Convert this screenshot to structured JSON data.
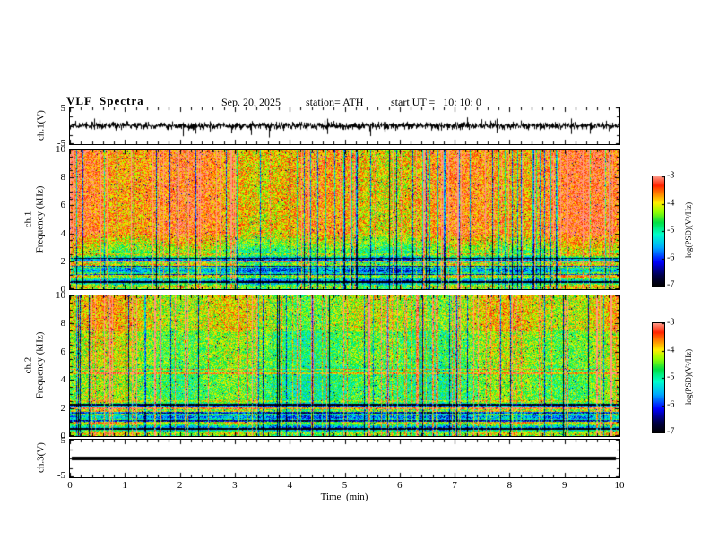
{
  "header": {
    "title": "VLF  Spectra",
    "date": "Sep. 20, 2025",
    "station": "station= ATH",
    "start_ut": "start UT =   10: 10: 0"
  },
  "xaxis": {
    "label": "Time  (min)",
    "min": 0,
    "max": 10,
    "tick_labels": [
      "0",
      "1",
      "2",
      "3",
      "4",
      "5",
      "6",
      "7",
      "8",
      "9",
      "10"
    ]
  },
  "colorbar": {
    "label": "log(PSD)(V²/Hz)",
    "max": -3,
    "min": -7,
    "tick_labels": [
      "-3",
      "-4",
      "-5",
      "-6",
      "-7"
    ]
  },
  "panels": {
    "ch1_wave": {
      "ylabel": "ch.1(V)",
      "ylim": [
        -5,
        5
      ],
      "ytick_labels": [
        "5",
        "-5"
      ]
    },
    "ch1_spec": {
      "ylabel_line1": "ch.1",
      "ylabel_line2": "Frequency (kHz)",
      "ylim": [
        0,
        10
      ],
      "ytick_labels": [
        "10",
        "8",
        "6",
        "4",
        "2",
        "0"
      ]
    },
    "ch2_spec": {
      "ylabel_line1": "ch.2",
      "ylabel_line2": "Frequency (kHz)",
      "ylim": [
        0,
        10
      ],
      "ytick_labels": [
        "10",
        "8",
        "6",
        "4",
        "2",
        "0"
      ]
    },
    "ch3_wave": {
      "ylabel": "ch.3(V)",
      "ylim": [
        -5,
        5
      ],
      "ytick_labels": [
        "5",
        "-5"
      ]
    }
  },
  "chart_data": [
    {
      "id": "ch1-waveform",
      "type": "line",
      "ylabel": "ch.1(V)",
      "xlim": [
        0,
        10
      ],
      "ylim": [
        -5,
        5
      ],
      "yticks": [
        5,
        -5
      ],
      "summary": "zero-mean broadband noise trace filling roughly ±1.5 V with frequent transient spikes reaching about ±4.5 V across the full 10 minutes"
    },
    {
      "id": "ch1-spectrogram",
      "type": "heatmap",
      "ylabel": "ch.1 Frequency (kHz)",
      "xlim": [
        0,
        10
      ],
      "ylim": [
        0,
        10
      ],
      "yticks": [
        10,
        8,
        6,
        4,
        2,
        0
      ],
      "zlabel": "log(PSD)(V²/Hz)",
      "zlim": [
        -7,
        -3
      ],
      "zticks": [
        -3,
        -4,
        -5,
        -6,
        -7
      ],
      "summary": "high power (red, ≈ -3…-4) above ~4 kHz with dense vertical sferic streaks and scattered dark dropout columns; yellow-green mid band 2–4 kHz; strong horizontal banding (green/cyan/yellow with dark rows and a red line near 2 kHz) below ~2.5 kHz"
    },
    {
      "id": "ch2-spectrogram",
      "type": "heatmap",
      "ylabel": "ch.2 Frequency (kHz)",
      "xlim": [
        0,
        10
      ],
      "ylim": [
        0,
        10
      ],
      "yticks": [
        10,
        8,
        6,
        4,
        2,
        0
      ],
      "zlabel": "log(PSD)(V²/Hz)",
      "zlim": [
        -7,
        -3
      ],
      "zticks": [
        -3,
        -4,
        -5,
        -6,
        -7
      ],
      "summary": "green background (≈ -5) with many red vertical sferic streaks over the whole band; horizontal interference lines near 4.5–4.8 kHz and 2 kHz; banded structure with dark rows below ~2.5 kHz"
    },
    {
      "id": "ch3-waveform",
      "type": "line",
      "ylabel": "ch.3(V)",
      "xlim": [
        0,
        10
      ],
      "ylim": [
        -5,
        5
      ],
      "yticks": [
        5,
        -5
      ],
      "summary": "constant flat line at 0 V (thick black trace, no signal)"
    }
  ],
  "render": {
    "colormap": [
      {
        "t": 0.0,
        "color": "#000000"
      },
      {
        "t": 0.1,
        "color": "#00004d"
      },
      {
        "t": 0.22,
        "color": "#0000ff"
      },
      {
        "t": 0.35,
        "color": "#00aaff"
      },
      {
        "t": 0.47,
        "color": "#00ffcc"
      },
      {
        "t": 0.58,
        "color": "#00e044"
      },
      {
        "t": 0.68,
        "color": "#99ff00"
      },
      {
        "t": 0.76,
        "color": "#ffee00"
      },
      {
        "t": 0.84,
        "color": "#ff8800"
      },
      {
        "t": 0.92,
        "color": "#ff2200"
      },
      {
        "t": 1.0,
        "color": "#ff9988"
      }
    ]
  }
}
